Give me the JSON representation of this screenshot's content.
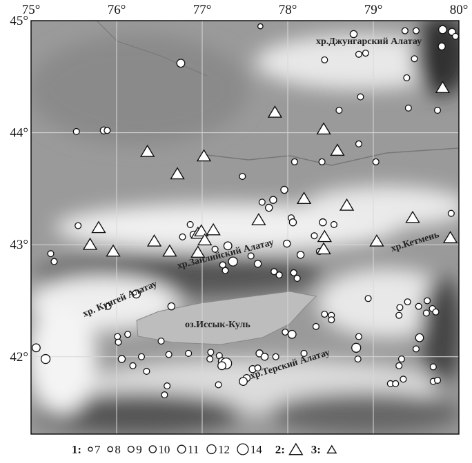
{
  "chart_data": {
    "type": "scatter",
    "xlim": [
      75,
      80
    ],
    "ylim": [
      41.31,
      45
    ],
    "xticks": [
      {
        "value": 75,
        "label": "75°"
      },
      {
        "value": 76,
        "label": "76°"
      },
      {
        "value": 77,
        "label": "77°"
      },
      {
        "value": 78,
        "label": "78°"
      },
      {
        "value": 79,
        "label": "79°"
      },
      {
        "value": 80,
        "label": "80°"
      }
    ],
    "yticks": [
      {
        "value": 45,
        "label": "45°"
      },
      {
        "value": 44,
        "label": "44°"
      },
      {
        "value": 43,
        "label": "43°"
      },
      {
        "value": 42,
        "label": "42°"
      }
    ],
    "grid": true,
    "annotations": [
      "хр.Джунгарский Алатау",
      "хр.Заилийский Алатау",
      "хр. Кунгей Алатау",
      "оз.Иссык-Куль",
      "хр.Терский Алатау",
      "хр.Кетмень"
    ],
    "size_legend": [
      7,
      8,
      9,
      10,
      11,
      12,
      14
    ],
    "series": [
      {
        "name": "1:",
        "color": "#ffffff",
        "x": [
          77.68,
          78.77,
          79.37,
          79.5,
          79.81,
          79.92,
          79.96,
          79.8,
          78.83,
          78.91,
          78.43,
          79.48,
          76.75,
          79.39,
          78.85,
          79.41,
          79.75,
          78.6,
          75.53,
          75.85,
          75.89,
          78.83,
          78.08,
          78.4,
          79.03,
          77.47,
          77.96,
          77.83,
          77.7,
          77.78,
          75.55,
          76.86,
          78.04,
          78.06,
          78.41,
          78.54,
          79.91,
          76.9,
          76.77,
          78.31,
          77.3,
          77.15,
          77.57,
          77.99,
          78.15,
          78.37,
          75.23,
          75.27,
          77.36,
          77.24,
          77.27,
          77.65,
          77.84,
          77.9,
          78.07,
          78.11,
          76.23,
          75.9,
          76.64,
          78.94,
          79.31,
          79.4,
          79.53,
          79.63,
          79.69,
          79.3,
          79.62,
          79.73,
          78.43,
          78.51,
          78.51,
          78.33,
          77.97,
          78.05,
          79.54,
          76.13,
          76.01,
          76.02,
          76.52,
          78.83,
          75.06,
          78.8,
          78.82,
          79.5,
          75.17,
          76.06,
          76.29,
          76.19,
          76.35,
          76.61,
          76.84,
          77.1,
          77.09,
          77.2,
          77.23,
          77.28,
          77.23,
          77.67,
          77.73,
          77.86,
          78.19,
          79.33,
          79.3,
          79.7,
          77.59,
          77.65,
          77.52,
          77.48,
          77.19,
          76.59,
          76.56,
          79.2,
          79.26,
          79.35,
          79.7,
          79.75
        ],
        "y": [
          44.95,
          44.88,
          44.91,
          44.91,
          44.92,
          44.9,
          44.86,
          44.77,
          44.7,
          44.71,
          44.65,
          44.66,
          44.62,
          44.49,
          44.32,
          44.22,
          44.2,
          44.2,
          44.01,
          44.02,
          44.02,
          43.9,
          43.74,
          43.74,
          43.74,
          43.61,
          43.49,
          43.4,
          43.38,
          43.33,
          43.17,
          43.18,
          43.24,
          43.2,
          43.2,
          43.18,
          43.28,
          43.09,
          43.07,
          43.08,
          42.99,
          42.96,
          42.9,
          43.01,
          42.91,
          42.94,
          42.92,
          42.85,
          42.85,
          42.82,
          42.77,
          42.83,
          42.76,
          42.73,
          42.75,
          42.7,
          42.56,
          42.45,
          42.45,
          42.52,
          42.44,
          42.49,
          42.45,
          42.5,
          42.43,
          42.37,
          42.39,
          42.4,
          42.38,
          42.37,
          42.33,
          42.27,
          42.22,
          42.2,
          42.17,
          42.2,
          42.18,
          42.13,
          42.14,
          42.18,
          42.08,
          42.08,
          41.98,
          42.07,
          41.98,
          41.98,
          42,
          41.92,
          41.87,
          42.02,
          42.03,
          42.04,
          41.98,
          42.01,
          41.96,
          41.94,
          41.92,
          42.03,
          42,
          42,
          42.03,
          41.98,
          41.92,
          41.91,
          41.89,
          41.9,
          41.81,
          41.78,
          41.75,
          41.74,
          41.66,
          41.76,
          41.76,
          41.8,
          41.78,
          41.79
        ],
        "sizes": [
          8,
          10,
          9,
          9,
          11,
          10,
          9,
          10,
          9,
          9,
          9,
          9,
          11,
          9,
          9,
          9,
          9,
          9,
          9,
          10,
          9,
          9,
          9,
          9,
          9,
          9,
          10,
          10,
          9,
          10,
          9,
          9,
          9,
          10,
          10,
          9,
          9,
          10,
          9,
          9,
          11,
          9,
          9,
          10,
          10,
          9,
          9,
          9,
          12,
          9,
          9,
          10,
          9,
          9,
          9,
          9,
          11,
          9,
          10,
          9,
          9,
          9,
          9,
          9,
          9,
          9,
          9,
          9,
          9,
          9,
          9,
          9,
          9,
          11,
          11,
          9,
          9,
          9,
          9,
          9,
          11,
          12,
          9,
          9,
          12,
          10,
          9,
          9,
          9,
          9,
          9,
          9,
          9,
          9,
          10,
          14,
          11,
          10,
          10,
          9,
          9,
          9,
          9,
          9,
          10,
          9,
          10,
          11,
          9,
          9,
          9,
          9,
          9,
          9,
          9,
          9
        ]
      },
      {
        "name": "2:",
        "color": "#ffffff",
        "x": [
          77.85,
          78.42,
          78.58,
          79.81,
          76.36,
          77.02,
          76.71,
          78.19,
          78.69,
          77.66,
          79.46,
          75.79,
          75.69,
          75.96,
          76.44,
          76.62,
          76.95,
          76.99,
          77.13,
          77.03,
          76.95,
          78.43,
          78.42,
          79.04,
          79.9
        ],
        "y": [
          44.18,
          44.03,
          43.84,
          44.4,
          43.83,
          43.79,
          43.63,
          43.41,
          43.35,
          43.22,
          43.24,
          43.15,
          43,
          42.94,
          43.03,
          42.94,
          43.1,
          43.12,
          43.13,
          43.04,
          42.93,
          43.07,
          42.96,
          43.03,
          43.06
        ]
      },
      {
        "name": "3:",
        "color": "#ffffff",
        "x": [],
        "y": []
      }
    ]
  }
}
